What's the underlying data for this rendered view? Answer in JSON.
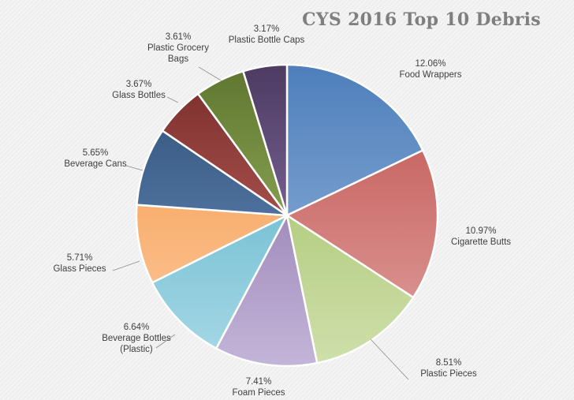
{
  "chart_data": {
    "type": "pie",
    "title": "CYS 2016 Top 10 Debris",
    "slices": [
      {
        "label": "Food Wrappers",
        "value": 12.06,
        "value_label": "12.06%",
        "color_dark": "#4e7fbb",
        "color_light": "#9bb9df"
      },
      {
        "label": "Cigarette Butts",
        "value": 10.97,
        "value_label": "10.97%",
        "color_dark": "#c0504d",
        "color_light": "#e0a3a1"
      },
      {
        "label": "Plastic Pieces",
        "value": 8.51,
        "value_label": "8.51%",
        "color_dark": "#9bbb59",
        "color_light": "#cfe0ac"
      },
      {
        "label": "Foam Pieces",
        "value": 7.41,
        "value_label": "7.41%",
        "color_dark": "#8064a2",
        "color_light": "#c3b5d8"
      },
      {
        "label": "Beverage Bottles (Plastic)",
        "lines": [
          "Beverage Bottles",
          "(Plastic)"
        ],
        "value": 6.64,
        "value_label": "6.64%",
        "color_dark": "#4bacc6",
        "color_light": "#a9d9e6"
      },
      {
        "label": "Glass Pieces",
        "value": 5.71,
        "value_label": "5.71%",
        "color_dark": "#f79646",
        "color_light": "#fbcb9f"
      },
      {
        "label": "Beverage Cans",
        "value": 5.65,
        "value_label": "5.65%",
        "color_dark": "#2c4d75",
        "color_light": "#6f95c4"
      },
      {
        "label": "Glass Bottles",
        "value": 3.67,
        "value_label": "3.67%",
        "color_dark": "#772c2a",
        "color_light": "#d06f6b"
      },
      {
        "label": "Plastic Grocery Bags",
        "lines": [
          "Plastic Grocery",
          "Bags"
        ],
        "value": 3.61,
        "value_label": "3.61%",
        "color_dark": "#5f7530",
        "color_light": "#a9c86c"
      },
      {
        "label": "Plastic Bottle Caps",
        "value": 3.17,
        "value_label": "3.17%",
        "color_dark": "#4d3b62",
        "color_light": "#9a80bb"
      }
    ],
    "start_angle": "12 o'clock",
    "direction": "clockwise",
    "legend": "none"
  }
}
